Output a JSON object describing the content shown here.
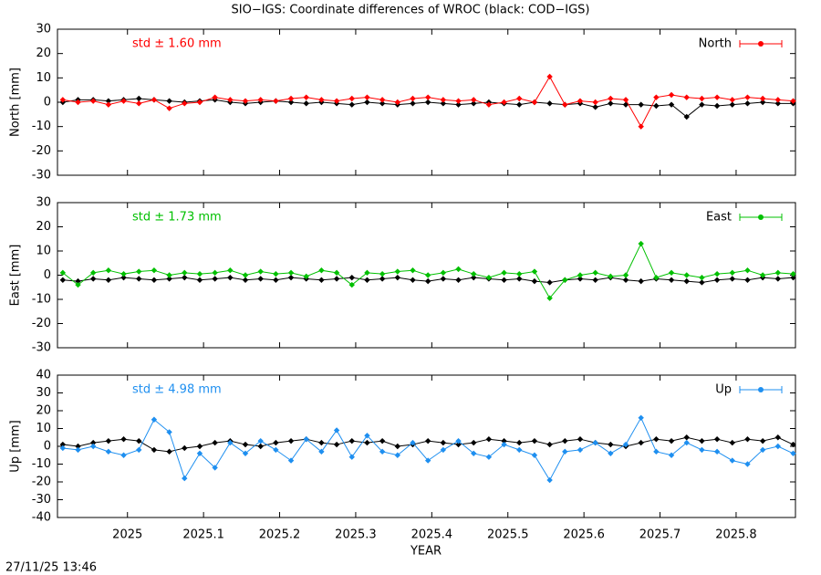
{
  "title": "SIO−IGS: Coordinate differences of WROC (black: COD−IGS)",
  "xlabel": "YEAR",
  "timestamp": "27/11/25 13:46",
  "xlim": [
    2024.908,
    2025.878
  ],
  "xticks": [
    2025,
    2025.1,
    2025.2,
    2025.3,
    2025.4,
    2025.5,
    2025.6,
    2025.7,
    2025.8
  ],
  "x": [
    2024.915,
    2024.935,
    2024.955,
    2024.975,
    2024.995,
    2025.015,
    2025.035,
    2025.055,
    2025.075,
    2025.095,
    2025.115,
    2025.135,
    2025.155,
    2025.175,
    2025.195,
    2025.215,
    2025.235,
    2025.255,
    2025.275,
    2025.295,
    2025.315,
    2025.335,
    2025.355,
    2025.375,
    2025.395,
    2025.415,
    2025.435,
    2025.455,
    2025.475,
    2025.495,
    2025.515,
    2025.535,
    2025.555,
    2025.575,
    2025.595,
    2025.615,
    2025.635,
    2025.655,
    2025.675,
    2025.695,
    2025.715,
    2025.735,
    2025.755,
    2025.775,
    2025.795,
    2025.815,
    2025.835,
    2025.855,
    2025.875
  ],
  "chart_data": [
    {
      "type": "line",
      "ylabel": "North [mm]",
      "annotation": "std ± 1.60 mm",
      "annotation_color": "#ff0000",
      "ylim": [
        -30,
        30
      ],
      "yticks": [
        -30,
        -20,
        -10,
        0,
        10,
        20,
        30
      ],
      "series": [
        {
          "color": "#000000",
          "values": [
            0,
            1,
            1,
            0.5,
            1,
            1.5,
            1,
            0.5,
            0,
            0.5,
            1,
            0,
            -0.5,
            0,
            0.5,
            0,
            -0.5,
            0,
            -0.5,
            -1,
            0,
            -0.5,
            -1,
            -0.5,
            0,
            -0.5,
            -1,
            -0.5,
            0,
            -0.5,
            -1,
            0,
            -0.5,
            -1,
            -0.5,
            -2,
            -0.5,
            -1,
            -1,
            -1.5,
            -1,
            -6,
            -1,
            -1.5,
            -1,
            -0.5,
            0,
            -0.5,
            -0.5
          ]
        },
        {
          "name": "North",
          "color": "#ff0000",
          "values": [
            1,
            0,
            0.5,
            -1,
            0.5,
            -0.5,
            1,
            -2.5,
            -0.5,
            0,
            2,
            1,
            0.5,
            1,
            0.5,
            1.5,
            2,
            1,
            0.5,
            1.5,
            2,
            1,
            0,
            1.5,
            2,
            1,
            0.5,
            1,
            -1,
            0,
            1.5,
            0,
            10.5,
            -1,
            0.5,
            0,
            1.5,
            1,
            -10,
            2,
            3,
            2,
            1.5,
            2,
            1,
            2,
            1.5,
            1,
            0.5
          ]
        }
      ]
    },
    {
      "type": "line",
      "ylabel": "East [mm]",
      "annotation": "std ± 1.73 mm",
      "annotation_color": "#00c000",
      "ylim": [
        -30,
        30
      ],
      "yticks": [
        -30,
        -20,
        -10,
        0,
        10,
        20,
        30
      ],
      "series": [
        {
          "color": "#000000",
          "values": [
            -2,
            -2.5,
            -1.5,
            -2,
            -1,
            -1.5,
            -2,
            -1.5,
            -1,
            -2,
            -1.5,
            -1,
            -2,
            -1.5,
            -2,
            -1,
            -1.5,
            -2,
            -1.5,
            -1,
            -2,
            -1.5,
            -1,
            -2,
            -2.5,
            -1.5,
            -2,
            -1,
            -1.5,
            -2,
            -1.5,
            -2.5,
            -3,
            -2,
            -1.5,
            -2,
            -1,
            -2,
            -2.5,
            -1.5,
            -2,
            -2.5,
            -3,
            -2,
            -1.5,
            -2,
            -1,
            -1.5,
            -1
          ]
        },
        {
          "name": "East",
          "color": "#00c000",
          "values": [
            1,
            -4,
            1,
            2,
            0.5,
            1.5,
            2,
            0,
            1,
            0.5,
            1,
            2,
            0,
            1.5,
            0.5,
            1,
            -0.5,
            2,
            1,
            -4,
            1,
            0.5,
            1.5,
            2,
            0,
            1,
            2.5,
            0.5,
            -1,
            1,
            0.5,
            1.5,
            -9.5,
            -2,
            0,
            1,
            -0.5,
            0,
            13,
            -1,
            1,
            0,
            -1,
            0.5,
            1,
            2,
            0,
            1,
            0.5
          ]
        }
      ]
    },
    {
      "type": "line",
      "ylabel": "Up [mm]",
      "annotation": "std ± 4.98 mm",
      "annotation_color": "#1e8ff0",
      "ylim": [
        -40,
        40
      ],
      "yticks": [
        -40,
        -30,
        -20,
        -10,
        0,
        10,
        20,
        30,
        40
      ],
      "series": [
        {
          "color": "#000000",
          "values": [
            1,
            0,
            2,
            3,
            4,
            3,
            -2,
            -3,
            -1,
            0,
            2,
            3,
            1,
            0,
            2,
            3,
            4,
            2,
            1,
            3,
            2,
            3,
            0,
            1,
            3,
            2,
            1,
            2,
            4,
            3,
            2,
            3,
            1,
            3,
            4,
            2,
            1,
            0,
            2,
            4,
            3,
            5,
            3,
            4,
            2,
            4,
            3,
            5,
            1
          ]
        },
        {
          "name": "Up",
          "color": "#1e8ff0",
          "values": [
            -1,
            -2,
            0,
            -3,
            -5,
            -2,
            15,
            8,
            -18,
            -4,
            -12,
            2,
            -4,
            3,
            -2,
            -8,
            4,
            -3,
            9,
            -6,
            6,
            -3,
            -5,
            2,
            -8,
            -2,
            3,
            -4,
            -6,
            1,
            -2,
            -5,
            -19,
            -3,
            -2,
            2,
            -4,
            1,
            16,
            -3,
            -5,
            2,
            -2,
            -3,
            -8,
            -10,
            -2,
            0,
            -4
          ]
        }
      ]
    }
  ]
}
